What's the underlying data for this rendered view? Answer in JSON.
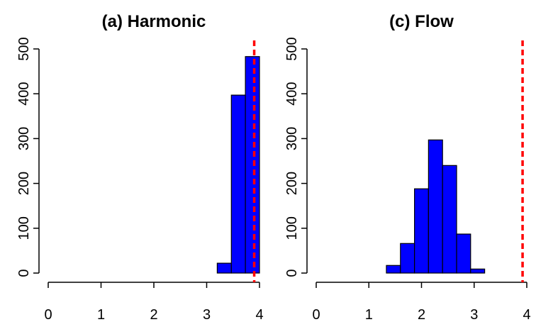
{
  "chart_data": [
    {
      "type": "histogram",
      "title": "(a) Harmonic",
      "bins": [
        0,
        0.267,
        0.533,
        0.8,
        1.067,
        1.333,
        1.6,
        1.867,
        2.133,
        2.4,
        2.667,
        2.933,
        3.2,
        3.467,
        3.733,
        4
      ],
      "values": [
        0,
        0,
        0,
        0,
        0,
        0,
        0,
        0,
        0,
        0,
        0,
        0,
        22,
        397,
        483
      ],
      "color": "#0000ff",
      "vline": 3.9,
      "vline_color": "#ff0000",
      "xlim": [
        0,
        4
      ],
      "xticks": [
        0,
        1,
        2,
        3,
        4
      ],
      "ylim": [
        0,
        500
      ],
      "yticks": [
        0,
        100,
        200,
        300,
        400,
        500
      ]
    },
    {
      "type": "histogram",
      "title": "(c) Flow",
      "bins": [
        0,
        0.267,
        0.533,
        0.8,
        1.067,
        1.333,
        1.6,
        1.867,
        2.133,
        2.4,
        2.667,
        2.933,
        3.2,
        3.467,
        3.733,
        4
      ],
      "values": [
        0,
        0,
        0,
        0,
        0,
        17,
        66,
        188,
        297,
        240,
        87,
        9,
        0,
        0,
        0
      ],
      "color": "#0000ff",
      "vline": 3.92,
      "vline_color": "#ff0000",
      "xlim": [
        0,
        4
      ],
      "xticks": [
        0,
        1,
        2,
        3,
        4
      ],
      "ylim": [
        0,
        500
      ],
      "yticks": [
        0,
        100,
        200,
        300,
        400,
        500
      ]
    }
  ]
}
